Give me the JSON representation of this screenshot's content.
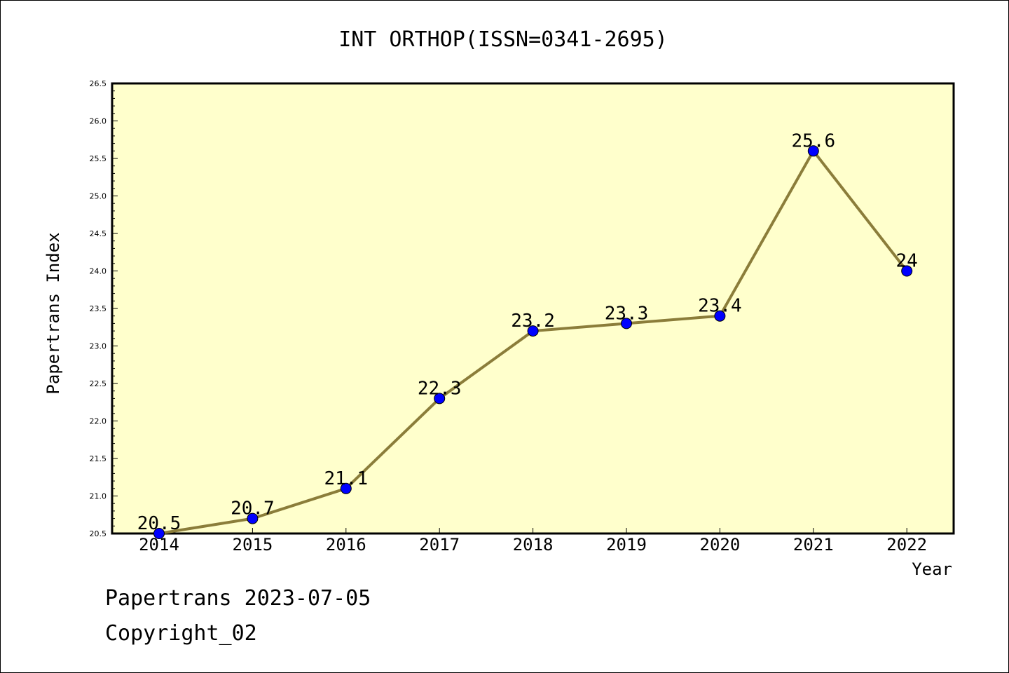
{
  "chart_data": {
    "type": "line",
    "title": "INT ORTHOP(ISSN=0341-2695)",
    "xlabel": "Year",
    "ylabel": "Papertrans Index",
    "x": [
      "2014",
      "2015",
      "2016",
      "2017",
      "2018",
      "2019",
      "2020",
      "2021",
      "2022"
    ],
    "values": [
      20.5,
      20.7,
      21.1,
      22.3,
      23.2,
      23.3,
      23.4,
      25.6,
      24.0
    ],
    "data_labels": [
      "20.5",
      "20.7",
      "21.1",
      "22.3",
      "23.2",
      "23.3",
      "23.4",
      "25.6",
      "24"
    ],
    "ylim": [
      20.5,
      26.5
    ],
    "y_ticks": [
      "20.5",
      "21.0",
      "21.5",
      "22.0",
      "22.5",
      "23.0",
      "23.5",
      "24.0",
      "24.5",
      "25.0",
      "25.5",
      "26.0",
      "26.5"
    ],
    "grid": false,
    "colors": {
      "plot_background": "#ffffcc",
      "line": "#8b7d3a",
      "marker": "#0000ff"
    }
  },
  "footer": {
    "line1": "Papertrans 2023-07-05",
    "line2": "Copyright_02"
  }
}
